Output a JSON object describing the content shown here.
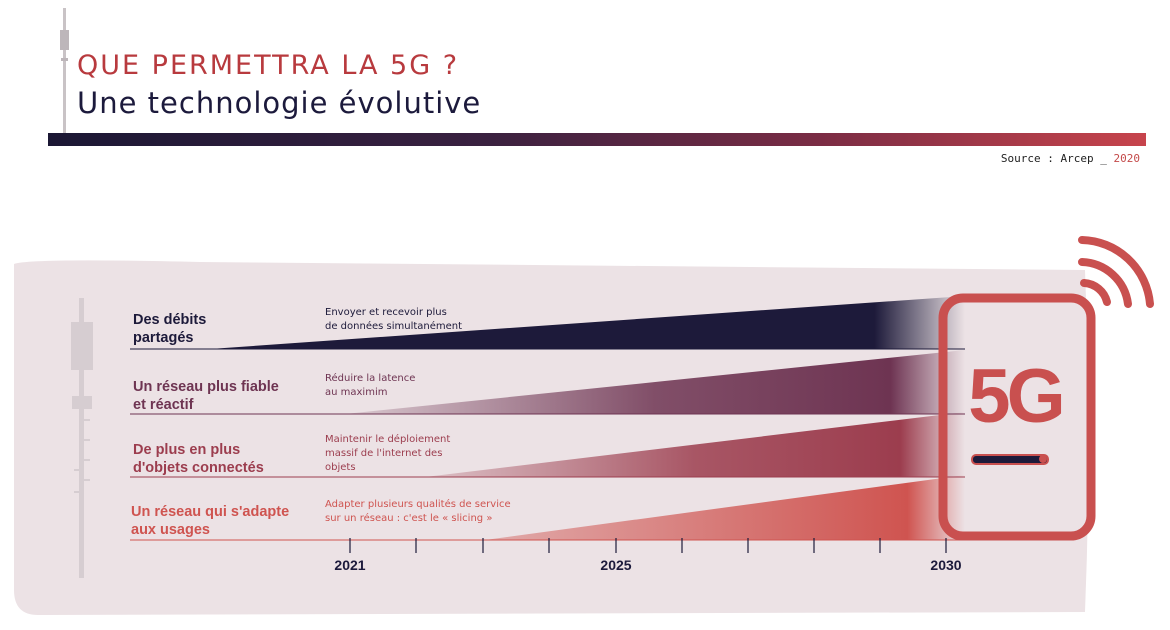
{
  "header": {
    "title": "QUE PERMETTRA LA 5G ?",
    "subtitle": "Une technologie évolutive",
    "source_prefix": "Source : Arcep _",
    "source_year": "2020"
  },
  "rows": [
    {
      "label_line1": "Des débits",
      "label_line2": "partagés",
      "desc_line1": "Envoyer et recevoir plus",
      "desc_line2": "de données simultanément",
      "desc_line3": "",
      "color": "#1d1a3a"
    },
    {
      "label_line1": "Un réseau plus fiable",
      "label_line2": "et réactif",
      "desc_line1": "Réduire la latence",
      "desc_line2": "au maximim",
      "desc_line3": "",
      "color": "#6e3452"
    },
    {
      "label_line1": "De plus en plus",
      "label_line2": "d'objets connectés",
      "desc_line1": "Maintenir le déploiement",
      "desc_line2": "massif de l'internet des",
      "desc_line3": "objets",
      "color": "#9c3d4e"
    },
    {
      "label_line1": "Un réseau qui s'adapte",
      "label_line2": "aux usages",
      "desc_line1": "Adapter plusieurs qualités de service",
      "desc_line2": "sur un réseau : c'est le « slicing »",
      "desc_line3": "",
      "color": "#cf5450"
    }
  ],
  "timeline": {
    "years": [
      "2021",
      "2025",
      "2030"
    ]
  },
  "phone": {
    "label": "5G"
  },
  "colors": {
    "accent_red": "#c9504f",
    "navy": "#1d1a3a",
    "panel_bg": "#ece2e5"
  }
}
